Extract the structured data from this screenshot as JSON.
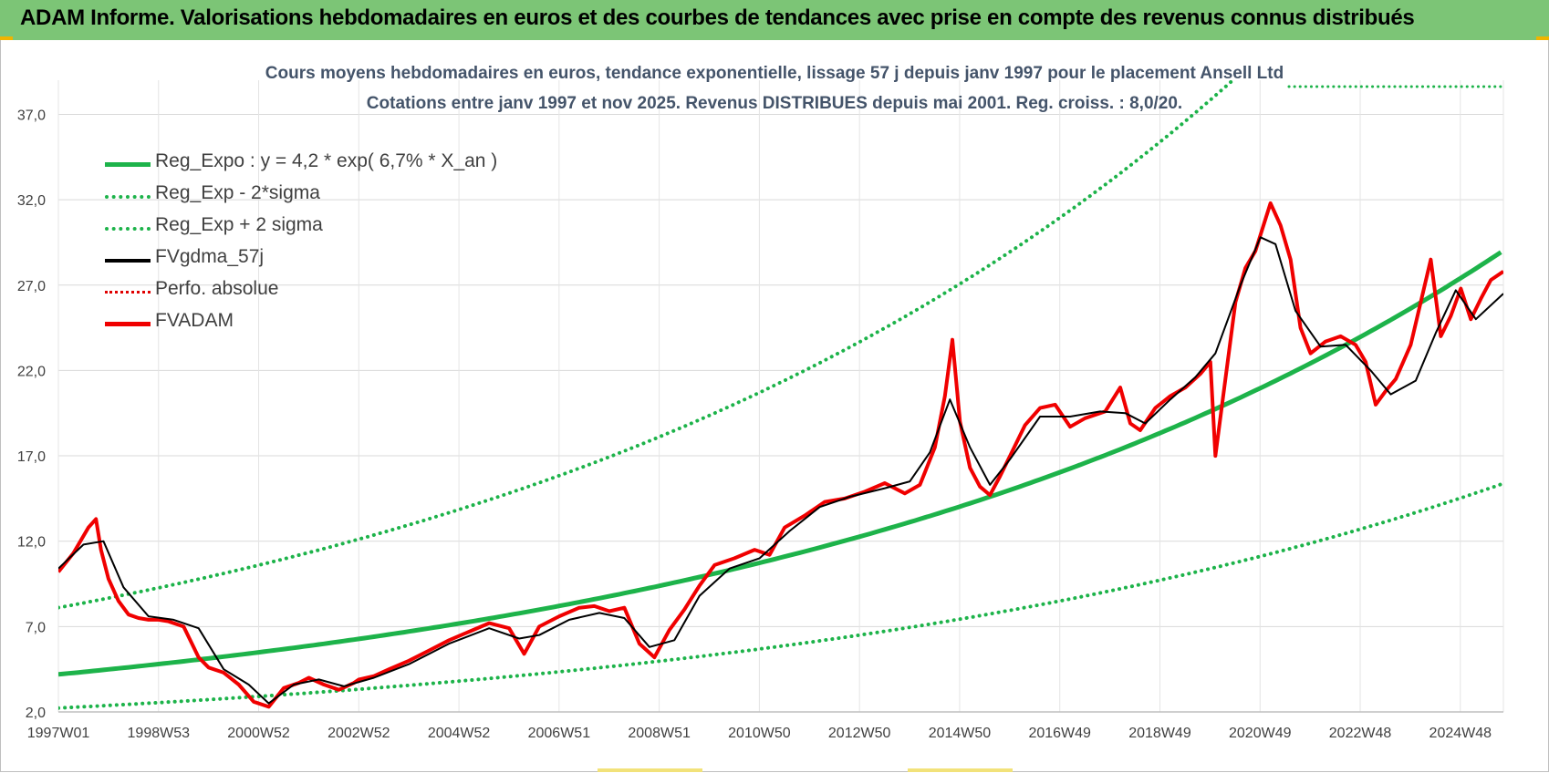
{
  "header": {
    "title": "ADAM Informe. Valorisations hebdomadaires en euros et des courbes de tendances avec prise en compte des revenus connus distribués"
  },
  "chart_data": {
    "type": "line",
    "title_line1": "Cours moyens hebdomadaires en euros, tendance exponentielle, lissage 57 j depuis janv 1997 pour le placement Ansell Ltd",
    "title_line2": "Cotations entre janv 1997 et nov 2025. Revenus DISTRIBUES depuis mai 2001. Reg. croiss. : 8,0/20.",
    "x_ticks": [
      "1997W01",
      "1998W53",
      "2000W52",
      "2002W52",
      "2004W52",
      "2006W51",
      "2008W51",
      "2010W50",
      "2012W50",
      "2014W50",
      "2016W49",
      "2018W49",
      "2020W49",
      "2022W48",
      "2024W48"
    ],
    "x_range": [
      1997.0,
      2025.85
    ],
    "y_ticks": [
      "2,0",
      "7,0",
      "12,0",
      "17,0",
      "22,0",
      "27,0",
      "32,0",
      "37,0"
    ],
    "ylim": [
      2,
      39
    ],
    "grid": true,
    "legend_position": "top-left",
    "regression": {
      "a": 4.2,
      "rate": 0.067,
      "sigma_factor_low": 0.53,
      "sigma_factor_high": 1.93
    },
    "series": [
      {
        "name": "Reg_Expo : y = 4,2 * exp( 6,7% *  X_an )",
        "color": "#1db34a",
        "style": "solid"
      },
      {
        "name": "Reg_Exp - 2*sigma",
        "color": "#1db34a",
        "style": "dotted"
      },
      {
        "name": "Reg_Exp + 2 sigma",
        "color": "#1db34a",
        "style": "dotted"
      },
      {
        "name": "FVgdma_57j",
        "color": "#000000",
        "style": "solid"
      },
      {
        "name": "Perfo. absolue",
        "color": "#e00000",
        "style": "dotted"
      },
      {
        "name": "FVADAM",
        "color": "#f00000",
        "style": "solid"
      }
    ],
    "fvadam": {
      "x": [
        1997.0,
        1997.3,
        1997.6,
        1997.75,
        1997.85,
        1998.0,
        1998.2,
        1998.4,
        1998.6,
        1998.8,
        1999.0,
        1999.2,
        1999.5,
        1999.8,
        2000.0,
        2000.3,
        2000.6,
        2000.9,
        2001.2,
        2001.5,
        2001.8,
        2002.0,
        2002.3,
        2002.6,
        2002.9,
        2003.0,
        2003.3,
        2003.6,
        2004.0,
        2004.4,
        2004.8,
        2005.2,
        2005.6,
        2006.0,
        2006.3,
        2006.6,
        2007.0,
        2007.4,
        2007.7,
        2008.0,
        2008.3,
        2008.6,
        2008.9,
        2009.2,
        2009.5,
        2009.8,
        2010.1,
        2010.5,
        2010.9,
        2011.2,
        2011.5,
        2011.9,
        2012.3,
        2012.7,
        2013.1,
        2013.5,
        2013.9,
        2014.2,
        2014.5,
        2014.7,
        2014.85,
        2015.0,
        2015.2,
        2015.4,
        2015.6,
        2015.8,
        2016.0,
        2016.3,
        2016.6,
        2016.9,
        2017.2,
        2017.5,
        2017.9,
        2018.2,
        2018.4,
        2018.6,
        2018.9,
        2019.2,
        2019.5,
        2019.8,
        2020.0,
        2020.1,
        2020.3,
        2020.5,
        2020.7,
        2020.9,
        2021.2,
        2021.4,
        2021.6,
        2021.8,
        2022.0,
        2022.3,
        2022.6,
        2022.9,
        2023.1,
        2023.3,
        2023.5,
        2023.7,
        2024.0,
        2024.2,
        2024.4,
        2024.6,
        2024.8,
        2025.0,
        2025.2,
        2025.4,
        2025.6,
        2025.85
      ],
      "y": [
        10.2,
        11.3,
        12.8,
        13.3,
        11.5,
        9.8,
        8.5,
        7.7,
        7.5,
        7.4,
        7.4,
        7.3,
        7.0,
        5.2,
        4.6,
        4.3,
        3.6,
        2.6,
        2.3,
        3.4,
        3.7,
        4.0,
        3.6,
        3.3,
        3.7,
        3.9,
        4.1,
        4.5,
        5.0,
        5.6,
        6.2,
        6.7,
        7.2,
        6.9,
        5.4,
        7.0,
        7.6,
        8.1,
        8.2,
        7.9,
        8.1,
        6.0,
        5.2,
        6.8,
        8.0,
        9.4,
        10.6,
        11.0,
        11.5,
        11.2,
        12.8,
        13.5,
        14.3,
        14.5,
        14.9,
        15.4,
        14.8,
        15.3,
        17.5,
        20.5,
        23.8,
        19.0,
        16.3,
        15.2,
        14.7,
        15.8,
        17.0,
        18.8,
        19.8,
        20.0,
        18.7,
        19.2,
        19.6,
        21.0,
        18.9,
        18.5,
        19.8,
        20.5,
        21.0,
        21.8,
        22.5,
        17.0,
        21.5,
        26.0,
        28.0,
        29.0,
        31.8,
        30.5,
        28.5,
        24.5,
        23.0,
        23.7,
        24.0,
        23.5,
        22.5,
        20.0,
        20.8,
        21.5,
        23.5,
        26.0,
        28.5,
        24.0,
        25.2,
        26.8,
        25.0,
        26.2,
        27.3,
        27.8
      ]
    },
    "fvgdma_57j": {
      "x": [
        1997.0,
        1997.5,
        1997.9,
        1998.3,
        1998.8,
        1999.3,
        1999.8,
        2000.3,
        2000.8,
        2001.2,
        2001.7,
        2002.2,
        2002.7,
        2003.3,
        2004.0,
        2004.8,
        2005.6,
        2006.2,
        2006.6,
        2007.2,
        2007.8,
        2008.3,
        2008.8,
        2009.3,
        2009.8,
        2010.4,
        2011.0,
        2011.6,
        2012.2,
        2012.8,
        2013.5,
        2014.0,
        2014.4,
        2014.8,
        2015.2,
        2015.6,
        2016.0,
        2016.6,
        2017.2,
        2017.8,
        2018.3,
        2018.7,
        2019.2,
        2019.7,
        2020.1,
        2020.6,
        2021.0,
        2021.3,
        2021.7,
        2022.2,
        2022.7,
        2023.2,
        2023.6,
        2024.1,
        2024.5,
        2024.9,
        2025.3,
        2025.85
      ],
      "y": [
        10.4,
        11.8,
        12.0,
        9.3,
        7.6,
        7.4,
        6.9,
        4.5,
        3.6,
        2.5,
        3.6,
        3.9,
        3.5,
        4.0,
        4.8,
        6.0,
        6.9,
        6.3,
        6.5,
        7.4,
        7.8,
        7.5,
        5.8,
        6.2,
        8.8,
        10.4,
        11.0,
        12.6,
        14.0,
        14.6,
        15.1,
        15.5,
        17.2,
        20.3,
        17.5,
        15.3,
        16.8,
        19.3,
        19.3,
        19.6,
        19.5,
        18.9,
        20.3,
        21.6,
        23.0,
        27.0,
        29.8,
        29.4,
        25.5,
        23.4,
        23.5,
        22.0,
        20.6,
        21.4,
        24.2,
        26.7,
        25.0,
        26.5
      ]
    }
  }
}
